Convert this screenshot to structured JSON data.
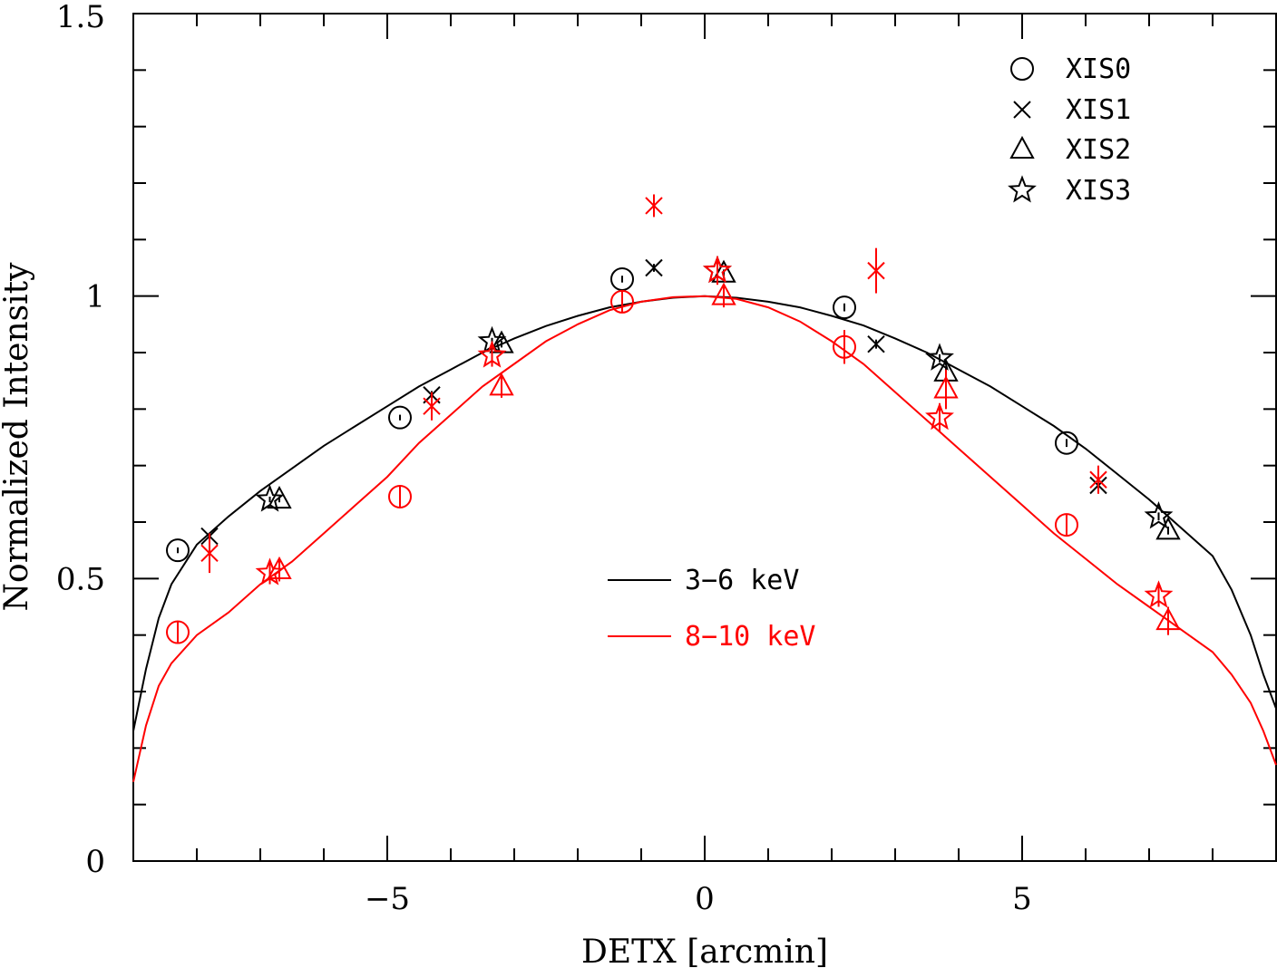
{
  "chart_data": {
    "type": "scatter",
    "title": "",
    "xlabel": "DETX [arcmin]",
    "ylabel": "Normalized Intensity",
    "xlim": [
      -9,
      9
    ],
    "ylim": [
      0,
      1.5
    ],
    "x_ticks": [
      {
        "value": -5,
        "label": "−5"
      },
      {
        "value": 0,
        "label": "0"
      },
      {
        "value": 5,
        "label": "5"
      }
    ],
    "y_ticks": [
      {
        "value": 0,
        "label": "0"
      },
      {
        "value": 0.5,
        "label": "0.5"
      },
      {
        "value": 1,
        "label": "1"
      },
      {
        "value": 1.5,
        "label": "1.5"
      }
    ],
    "grid": false,
    "marker_legend": {
      "placement": "top-right",
      "entries": [
        {
          "marker": "circle",
          "label": "XIS0"
        },
        {
          "marker": "cross",
          "label": "XIS1"
        },
        {
          "marker": "triangle",
          "label": "XIS2"
        },
        {
          "marker": "star",
          "label": "XIS3"
        }
      ]
    },
    "line_legend": {
      "placement": "bottom-center",
      "entries": [
        {
          "label": "3−6 keV",
          "color": "#000000"
        },
        {
          "label": "8−10 keV",
          "color": "#ff0000"
        }
      ]
    },
    "curves": [
      {
        "color": "#000000",
        "x": [
          -9,
          -8.8,
          -8.6,
          -8.4,
          -8,
          -7.5,
          -7,
          -6.5,
          -6,
          -5.5,
          -5,
          -4.5,
          -4,
          -3.5,
          -3,
          -2.5,
          -2,
          -1.5,
          -1,
          -0.5,
          0,
          0.5,
          1,
          1.5,
          2,
          2.5,
          3,
          3.5,
          4,
          4.5,
          5,
          5.5,
          6,
          6.5,
          7,
          7.5,
          8,
          8.3,
          8.6,
          8.8,
          9
        ],
        "y": [
          0.23,
          0.34,
          0.43,
          0.49,
          0.56,
          0.61,
          0.655,
          0.695,
          0.735,
          0.77,
          0.805,
          0.84,
          0.87,
          0.9,
          0.925,
          0.947,
          0.965,
          0.98,
          0.99,
          0.997,
          1.0,
          0.997,
          0.99,
          0.98,
          0.965,
          0.948,
          0.925,
          0.9,
          0.87,
          0.84,
          0.805,
          0.77,
          0.73,
          0.685,
          0.64,
          0.59,
          0.54,
          0.48,
          0.4,
          0.33,
          0.27
        ]
      },
      {
        "color": "#ff0000",
        "x": [
          -9,
          -8.8,
          -8.6,
          -8.4,
          -8,
          -7.5,
          -7,
          -6.5,
          -6,
          -5.5,
          -5,
          -4.5,
          -4,
          -3.5,
          -3,
          -2.5,
          -2,
          -1.5,
          -1,
          -0.5,
          0,
          0.5,
          1,
          1.5,
          2,
          2.5,
          3,
          3.5,
          4,
          4.5,
          5,
          5.5,
          6,
          6.5,
          7,
          7.5,
          8,
          8.3,
          8.6,
          8.8,
          9
        ],
        "y": [
          0.14,
          0.24,
          0.31,
          0.35,
          0.4,
          0.44,
          0.49,
          0.53,
          0.58,
          0.63,
          0.68,
          0.74,
          0.79,
          0.84,
          0.88,
          0.92,
          0.95,
          0.975,
          0.99,
          0.998,
          1.0,
          0.995,
          0.98,
          0.955,
          0.92,
          0.88,
          0.83,
          0.78,
          0.73,
          0.68,
          0.63,
          0.58,
          0.535,
          0.49,
          0.45,
          0.41,
          0.37,
          0.33,
          0.28,
          0.23,
          0.17
        ]
      }
    ],
    "series": [
      {
        "name": "XIS0",
        "marker": "circle",
        "color": "#000000",
        "x": [
          -8.3,
          -4.8,
          -1.3,
          2.2,
          5.7
        ],
        "y": [
          0.55,
          0.785,
          1.03,
          0.98,
          0.74
        ],
        "err": [
          0.005,
          0.005,
          0.006,
          0.007,
          0.007
        ]
      },
      {
        "name": "XIS0",
        "marker": "circle",
        "color": "#ff0000",
        "x": [
          -8.3,
          -4.8,
          -1.3,
          2.2,
          5.7
        ],
        "y": [
          0.405,
          0.645,
          0.99,
          0.91,
          0.595
        ],
        "err": [
          0.02,
          0.02,
          0.02,
          0.03,
          0.02
        ]
      },
      {
        "name": "XIS1",
        "marker": "cross",
        "color": "#000000",
        "x": [
          -7.8,
          -4.3,
          -0.8,
          2.7,
          6.2
        ],
        "y": [
          0.575,
          0.825,
          1.05,
          0.915,
          0.665
        ],
        "err": [
          0.006,
          0.007,
          0.007,
          0.008,
          0.008
        ]
      },
      {
        "name": "XIS1",
        "marker": "cross",
        "color": "#ff0000",
        "x": [
          -7.8,
          -4.3,
          -0.8,
          2.7,
          6.2
        ],
        "y": [
          0.545,
          0.805,
          1.16,
          1.045,
          0.675
        ],
        "err": [
          0.035,
          0.025,
          0.02,
          0.04,
          0.025
        ]
      },
      {
        "name": "XIS2",
        "marker": "triangle",
        "color": "#000000",
        "x": [
          -6.7,
          -3.2,
          0.3,
          3.8,
          7.3
        ],
        "y": [
          0.64,
          0.915,
          1.04,
          0.865,
          0.585
        ],
        "err": [
          0.005,
          0.006,
          0.007,
          0.007,
          0.007
        ]
      },
      {
        "name": "XIS2",
        "marker": "triangle",
        "color": "#ff0000",
        "x": [
          -6.7,
          -3.2,
          0.3,
          3.8,
          7.3
        ],
        "y": [
          0.515,
          0.84,
          1.0,
          0.835,
          0.425
        ],
        "err": [
          0.02,
          0.02,
          0.02,
          0.035,
          0.025
        ]
      },
      {
        "name": "XIS3",
        "marker": "star",
        "color": "#000000",
        "x": [
          -6.85,
          -3.35,
          0.2,
          3.7,
          7.15
        ],
        "y": [
          0.64,
          0.92,
          1.045,
          0.89,
          0.61
        ],
        "err": [
          0.005,
          0.006,
          0.007,
          0.007,
          0.007
        ]
      },
      {
        "name": "XIS3",
        "marker": "star",
        "color": "#ff0000",
        "x": [
          -6.85,
          -3.35,
          0.2,
          3.7,
          7.15
        ],
        "y": [
          0.51,
          0.895,
          1.045,
          0.785,
          0.47
        ],
        "err": [
          0.02,
          0.02,
          0.025,
          0.025,
          0.02
        ]
      }
    ]
  }
}
